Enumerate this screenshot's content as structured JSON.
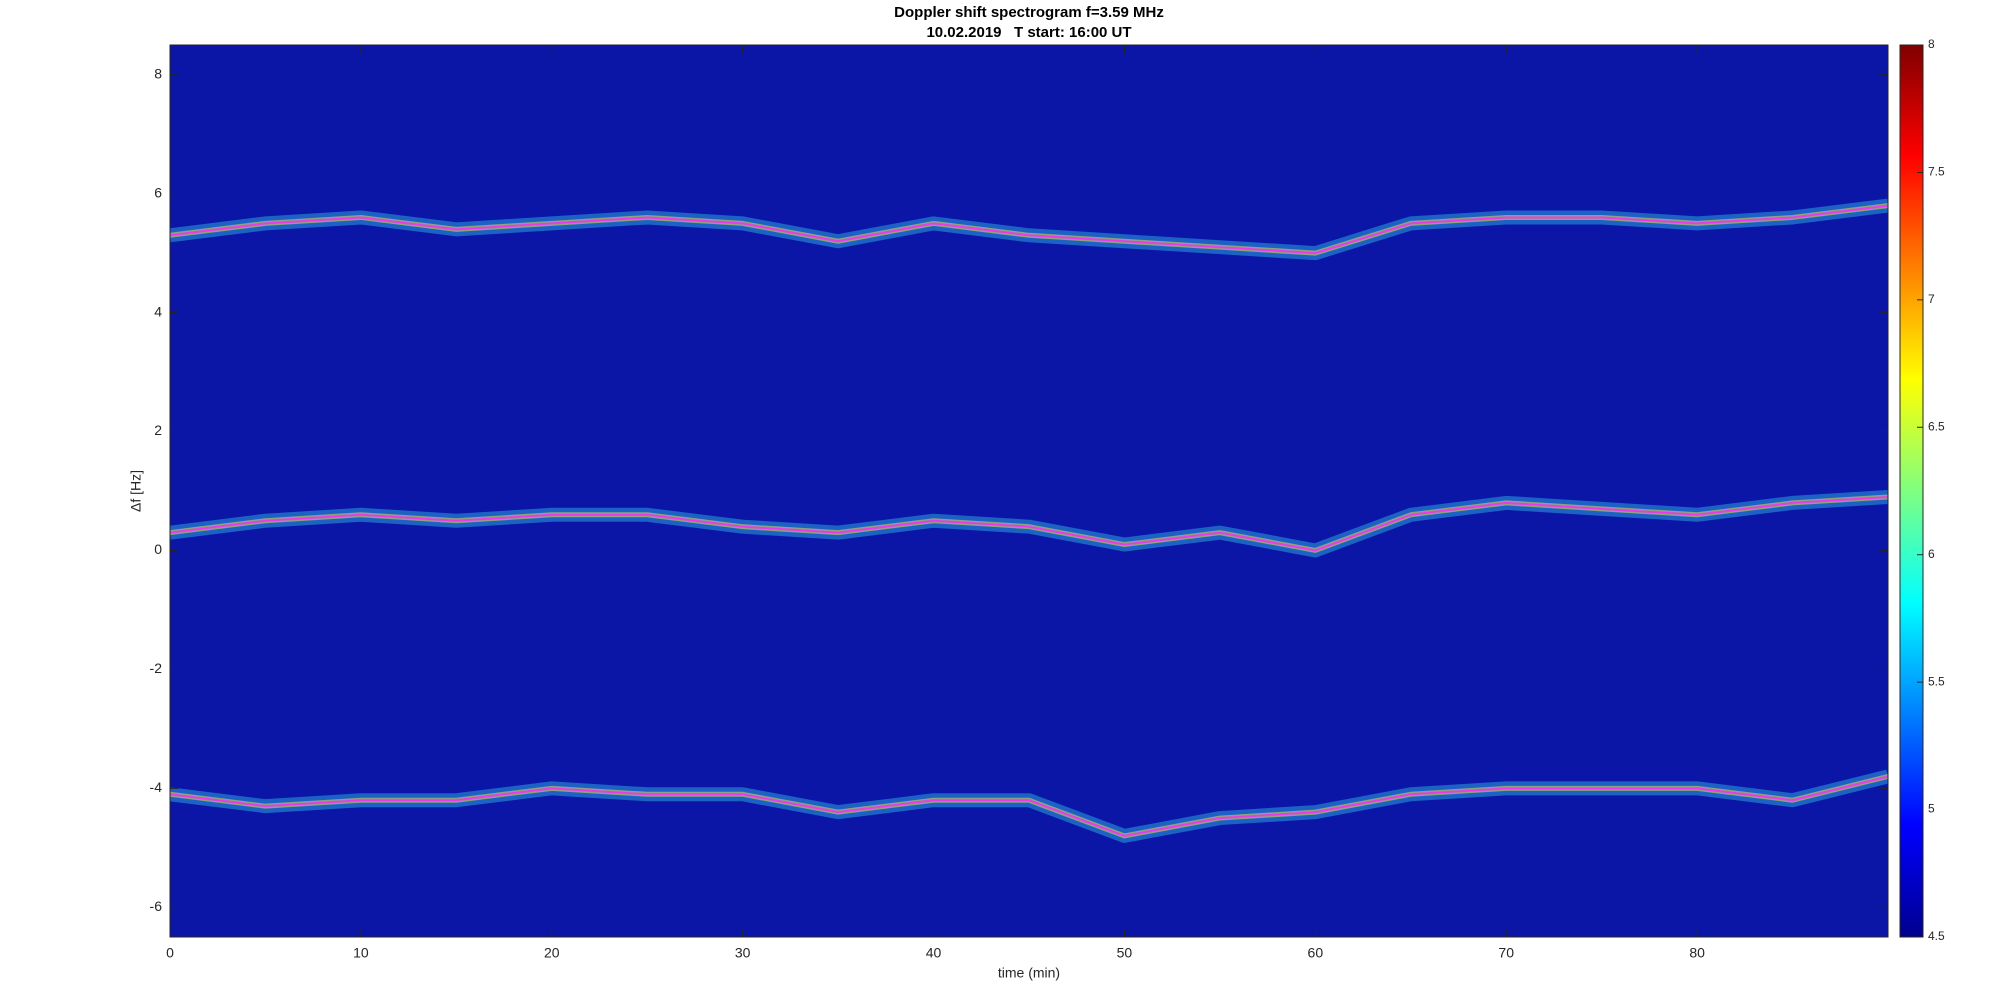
{
  "chart_data": {
    "type": "spectrogram",
    "title": "Doppler shift spectrogram f=3.59 MHz",
    "subtitle": "10.02.2019   T start: 16:00 UT",
    "x_label": "time (min)",
    "y_label": "Δf [Hz]",
    "x": [
      0,
      5,
      10,
      15,
      20,
      25,
      30,
      35,
      40,
      45,
      50,
      55,
      60,
      65,
      70,
      75,
      80,
      85,
      90
    ],
    "series": [
      {
        "color": "#e83ce8",
        "values": [
          5.3,
          5.5,
          5.6,
          5.4,
          5.5,
          5.6,
          5.5,
          5.2,
          5.5,
          5.3,
          5.2,
          5.1,
          5.0,
          5.5,
          5.6,
          5.6,
          5.5,
          5.6,
          5.8
        ]
      },
      {
        "color": "#e83ce8",
        "values": [
          0.3,
          0.5,
          0.6,
          0.5,
          0.6,
          0.6,
          0.4,
          0.3,
          0.5,
          0.4,
          0.1,
          0.3,
          0.0,
          0.6,
          0.8,
          0.7,
          0.6,
          0.8,
          0.9
        ]
      },
      {
        "color": "#e83ce8",
        "values": [
          -4.1,
          -4.3,
          -4.2,
          -4.2,
          -4.0,
          -4.1,
          -4.1,
          -4.4,
          -4.2,
          -4.2,
          -4.8,
          -4.5,
          -4.4,
          -4.1,
          -4.0,
          -4.0,
          -4.0,
          -4.2,
          -3.8
        ]
      }
    ],
    "xlim": [
      0,
      90
    ],
    "xticks": [
      0,
      10,
      20,
      30,
      40,
      50,
      60,
      70,
      80
    ],
    "ylim": [
      -6.5,
      8.5
    ],
    "yticks": [
      -6,
      -4,
      -2,
      0,
      2,
      4,
      6,
      8
    ],
    "clim": [
      4.5,
      8
    ],
    "cticks": [
      4.5,
      5,
      5.5,
      6,
      6.5,
      7,
      7.5,
      8
    ]
  }
}
